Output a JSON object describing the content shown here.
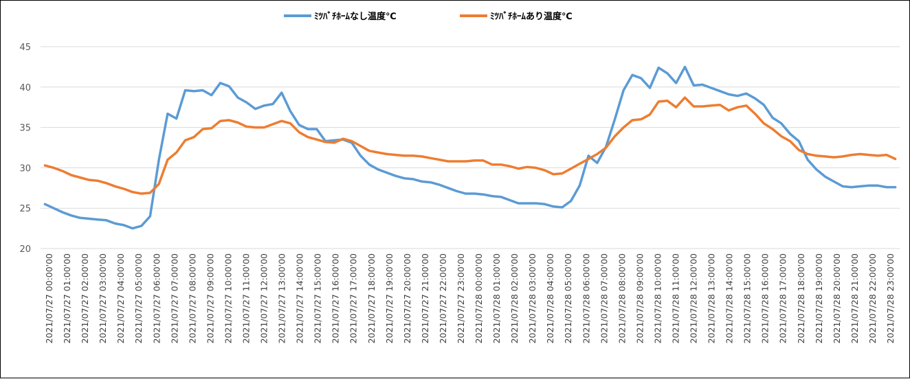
{
  "chart_data": {
    "type": "line",
    "title": "",
    "xlabel": "",
    "ylabel": "",
    "ylim": [
      20,
      45
    ],
    "yticks": [
      20,
      25,
      30,
      35,
      40,
      45
    ],
    "grid": "horizontal",
    "legend_position": "top",
    "x_tick_labels": [
      "2021/07/27 00:00'00",
      "2021/07/27 01:00'00",
      "2021/07/27 02:00'00",
      "2021/07/27 03:00'00",
      "2021/07/27 04:00'00",
      "2021/07/27 05:00'00",
      "2021/07/27 06:00'00",
      "2021/07/27 07:00'00",
      "2021/07/27 08:00'00",
      "2021/07/27 09:00'00",
      "2021/07/27 10:00'00",
      "2021/07/27 11:00'00",
      "2021/07/27 12:00'00",
      "2021/07/27 13:00'00",
      "2021/07/27 14:00'00",
      "2021/07/27 15:00'00",
      "2021/07/27 16:00'00",
      "2021/07/27 17:00'00",
      "2021/07/27 18:00'00",
      "2021/07/27 19:00'00",
      "2021/07/27 20:00'00",
      "2021/07/27 21:00'00",
      "2021/07/27 22:00'00",
      "2021/07/27 23:00'00",
      "2021/07/28 00:00'00",
      "2021/07/28 01:00'00",
      "2021/07/28 02:00'00",
      "2021/07/28 03:00'00",
      "2021/07/28 04:00'00",
      "2021/07/28 05:00'00",
      "2021/07/28 06:00'00",
      "2021/07/28 07:00'00",
      "2021/07/28 08:00'00",
      "2021/07/28 09:00'00",
      "2021/07/28 10:00'00",
      "2021/07/28 11:00'00",
      "2021/07/28 12:00'00",
      "2021/07/28 13:00'00",
      "2021/07/28 14:00'00",
      "2021/07/28 15:00'00",
      "2021/07/28 16:00'00",
      "2021/07/28 17:00'00",
      "2021/07/28 18:00'00",
      "2021/07/28 19:00'00",
      "2021/07/28 20:00'00",
      "2021/07/28 21:00'00",
      "2021/07/28 22:00'00",
      "2021/07/28 23:00'00"
    ],
    "series": [
      {
        "name": "ﾐﾂﾊﾞﾁﾎｰﾑなし温度℃",
        "color": "#5B9BD5",
        "values": [
          25.5,
          25.0,
          24.5,
          24.1,
          23.8,
          23.7,
          23.6,
          23.5,
          23.1,
          22.9,
          22.5,
          22.8,
          24.0,
          31.0,
          36.7,
          36.1,
          39.6,
          39.5,
          39.6,
          39.0,
          40.5,
          40.1,
          38.7,
          38.1,
          37.3,
          37.7,
          37.9,
          39.3,
          37.0,
          35.3,
          34.8,
          34.8,
          33.3,
          33.4,
          33.5,
          33.1,
          31.5,
          30.4,
          29.8,
          29.4,
          29.0,
          28.7,
          28.6,
          28.3,
          28.2,
          27.9,
          27.5,
          27.1,
          26.8,
          26.8,
          26.7,
          26.5,
          26.4,
          26.0,
          25.6,
          25.6,
          25.6,
          25.5,
          25.2,
          25.1,
          25.9,
          27.8,
          31.5,
          30.6,
          32.6,
          36.0,
          39.6,
          41.5,
          41.1,
          39.9,
          42.4,
          41.7,
          40.5,
          42.5,
          40.2,
          40.3,
          39.9,
          39.5,
          39.1,
          38.9,
          39.2,
          38.6,
          37.8,
          36.2,
          35.5,
          34.2,
          33.3,
          31.0,
          29.8,
          28.9,
          28.3,
          27.7,
          27.6,
          27.7,
          27.8,
          27.8,
          27.6,
          27.6
        ]
      },
      {
        "name": "ﾐﾂﾊﾞﾁﾎｰﾑあり温度℃",
        "color": "#ED7D31",
        "values": [
          30.3,
          30.0,
          29.6,
          29.1,
          28.8,
          28.5,
          28.4,
          28.1,
          27.7,
          27.4,
          27.0,
          26.8,
          26.9,
          28.0,
          31.0,
          31.9,
          33.4,
          33.8,
          34.8,
          34.9,
          35.8,
          35.9,
          35.6,
          35.1,
          35.0,
          35.0,
          35.4,
          35.8,
          35.5,
          34.4,
          33.8,
          33.5,
          33.2,
          33.1,
          33.6,
          33.3,
          32.7,
          32.1,
          31.9,
          31.7,
          31.6,
          31.5,
          31.5,
          31.4,
          31.2,
          31.0,
          30.8,
          30.8,
          30.8,
          30.9,
          30.9,
          30.4,
          30.4,
          30.2,
          29.9,
          30.1,
          30.0,
          29.7,
          29.2,
          29.3,
          29.9,
          30.5,
          31.1,
          31.7,
          32.5,
          33.9,
          35.0,
          35.9,
          36.0,
          36.6,
          38.2,
          38.3,
          37.5,
          38.7,
          37.6,
          37.6,
          37.7,
          37.8,
          37.1,
          37.5,
          37.7,
          36.7,
          35.5,
          34.8,
          33.9,
          33.3,
          32.2,
          31.7,
          31.5,
          31.4,
          31.3,
          31.4,
          31.6,
          31.7,
          31.6,
          31.5,
          31.6,
          31.1
        ]
      }
    ]
  }
}
